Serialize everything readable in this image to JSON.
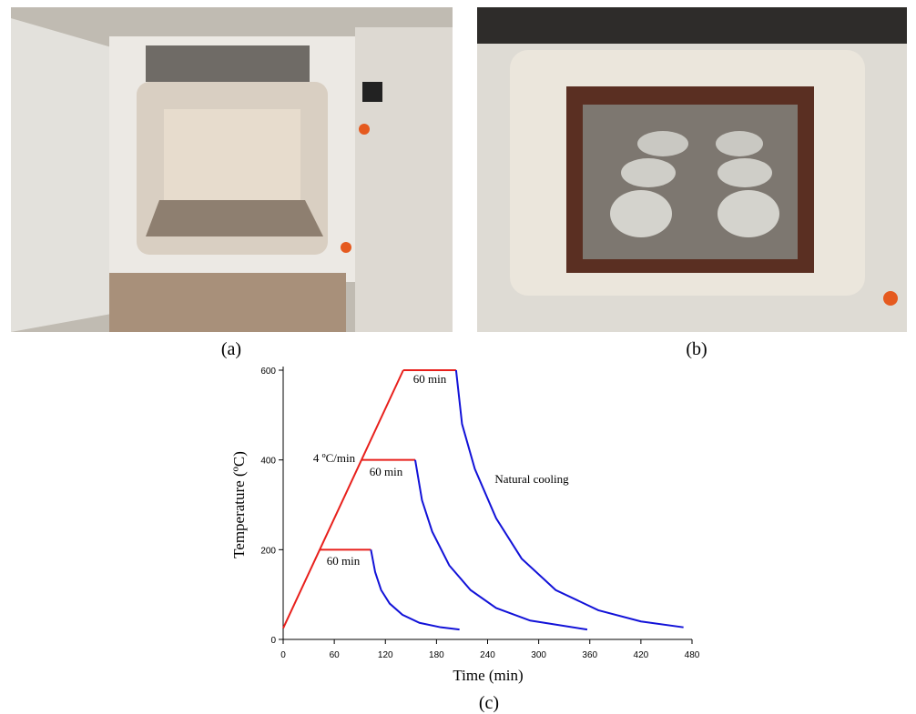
{
  "panels": [
    {
      "label": "(a)"
    },
    {
      "label": "(b)"
    }
  ],
  "chart_data": {
    "type": "line",
    "caption": "(c)",
    "xlabel": "Time (min)",
    "ylabel": "Temperature (ºC)",
    "xlim": [
      0,
      480
    ],
    "ylim": [
      0,
      600
    ],
    "xticks": [
      0,
      60,
      120,
      180,
      240,
      300,
      360,
      420,
      480
    ],
    "yticks": [
      0,
      200,
      400,
      600
    ],
    "series": [
      {
        "color": "#e8201c",
        "x": [
          0,
          141
        ],
        "values": [
          25,
          600
        ]
      },
      {
        "color": "#e8201c",
        "x": [
          43,
          103
        ],
        "values": [
          200,
          200
        ]
      },
      {
        "color": "#e8201c",
        "x": [
          92,
          155
        ],
        "values": [
          400,
          400
        ]
      },
      {
        "color": "#e8201c",
        "x": [
          141,
          203
        ],
        "values": [
          600,
          600
        ]
      },
      {
        "color": "#1212d8",
        "x": [
          103,
          108,
          115,
          125,
          140,
          160,
          185,
          207
        ],
        "values": [
          200,
          150,
          110,
          80,
          55,
          37,
          27,
          22
        ]
      },
      {
        "color": "#1212d8",
        "x": [
          155,
          163,
          175,
          195,
          220,
          250,
          290,
          357
        ],
        "values": [
          400,
          310,
          240,
          165,
          110,
          70,
          42,
          22
        ]
      },
      {
        "color": "#1212d8",
        "x": [
          203,
          210,
          225,
          250,
          280,
          320,
          370,
          420,
          470
        ],
        "values": [
          600,
          480,
          380,
          270,
          180,
          110,
          65,
          40,
          27
        ]
      }
    ],
    "annotations": [
      "60 min",
      "60 min",
      "60 min",
      "4 ºC/min",
      "Natural cooling"
    ]
  }
}
